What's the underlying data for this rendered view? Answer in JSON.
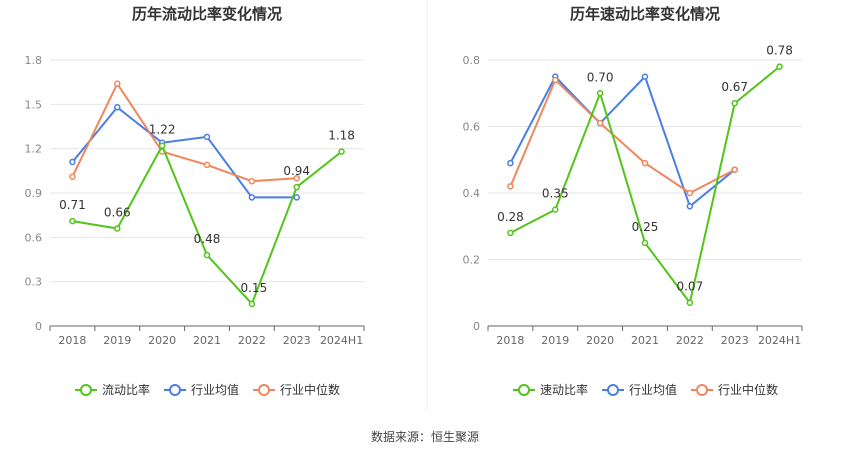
{
  "source": "数据来源：恒生聚源",
  "colors": {
    "main": "#52c41a",
    "avg": "#4a7ee6",
    "median": "#f0875c",
    "grid": "#e6e6e6",
    "axis": "#666666"
  },
  "chart_data": [
    {
      "type": "line",
      "title": "历年流动比率变化情况",
      "categories": [
        "2018",
        "2019",
        "2020",
        "2021",
        "2022",
        "2023",
        "2024H1"
      ],
      "ylim": [
        0,
        1.8
      ],
      "yticks": [
        0,
        0.3,
        0.6,
        0.9,
        1.2,
        1.5,
        1.8
      ],
      "ytick_labels": [
        "0",
        "0.3",
        "0.6",
        "0.9",
        "1.2",
        "1.5",
        "1.8"
      ],
      "grid": true,
      "legend_position": "bottom",
      "series": [
        {
          "name": "流动比率",
          "color": "#52c41a",
          "values": [
            0.71,
            0.66,
            1.22,
            0.48,
            0.15,
            0.94,
            1.18
          ],
          "labels": [
            "0.71",
            "0.66",
            "1.22",
            "0.48",
            "0.15",
            "0.94",
            "1.18"
          ]
        },
        {
          "name": "行业均值",
          "color": "#4a7ee6",
          "values": [
            1.11,
            1.48,
            1.24,
            1.28,
            0.87,
            0.87,
            null
          ]
        },
        {
          "name": "行业中位数",
          "color": "#f0875c",
          "values": [
            1.01,
            1.64,
            1.18,
            1.09,
            0.98,
            1.0,
            null
          ]
        }
      ]
    },
    {
      "type": "line",
      "title": "历年速动比率变化情况",
      "categories": [
        "2018",
        "2019",
        "2020",
        "2021",
        "2022",
        "2023",
        "2024H1"
      ],
      "ylim": [
        0,
        0.8
      ],
      "yticks": [
        0,
        0.2,
        0.4,
        0.6,
        0.8
      ],
      "ytick_labels": [
        "0",
        "0.2",
        "0.4",
        "0.6",
        "0.8"
      ],
      "grid": true,
      "legend_position": "bottom",
      "series": [
        {
          "name": "速动比率",
          "color": "#52c41a",
          "values": [
            0.28,
            0.35,
            0.7,
            0.25,
            0.07,
            0.67,
            0.78
          ],
          "labels": [
            "0.28",
            "0.35",
            "0.70",
            "0.25",
            "0.07",
            "0.67",
            "0.78"
          ]
        },
        {
          "name": "行业均值",
          "color": "#4a7ee6",
          "values": [
            0.49,
            0.75,
            0.61,
            0.75,
            0.36,
            0.47,
            null
          ]
        },
        {
          "name": "行业中位数",
          "color": "#f0875c",
          "values": [
            0.42,
            0.74,
            0.61,
            0.49,
            0.4,
            0.47,
            null
          ]
        }
      ]
    }
  ]
}
